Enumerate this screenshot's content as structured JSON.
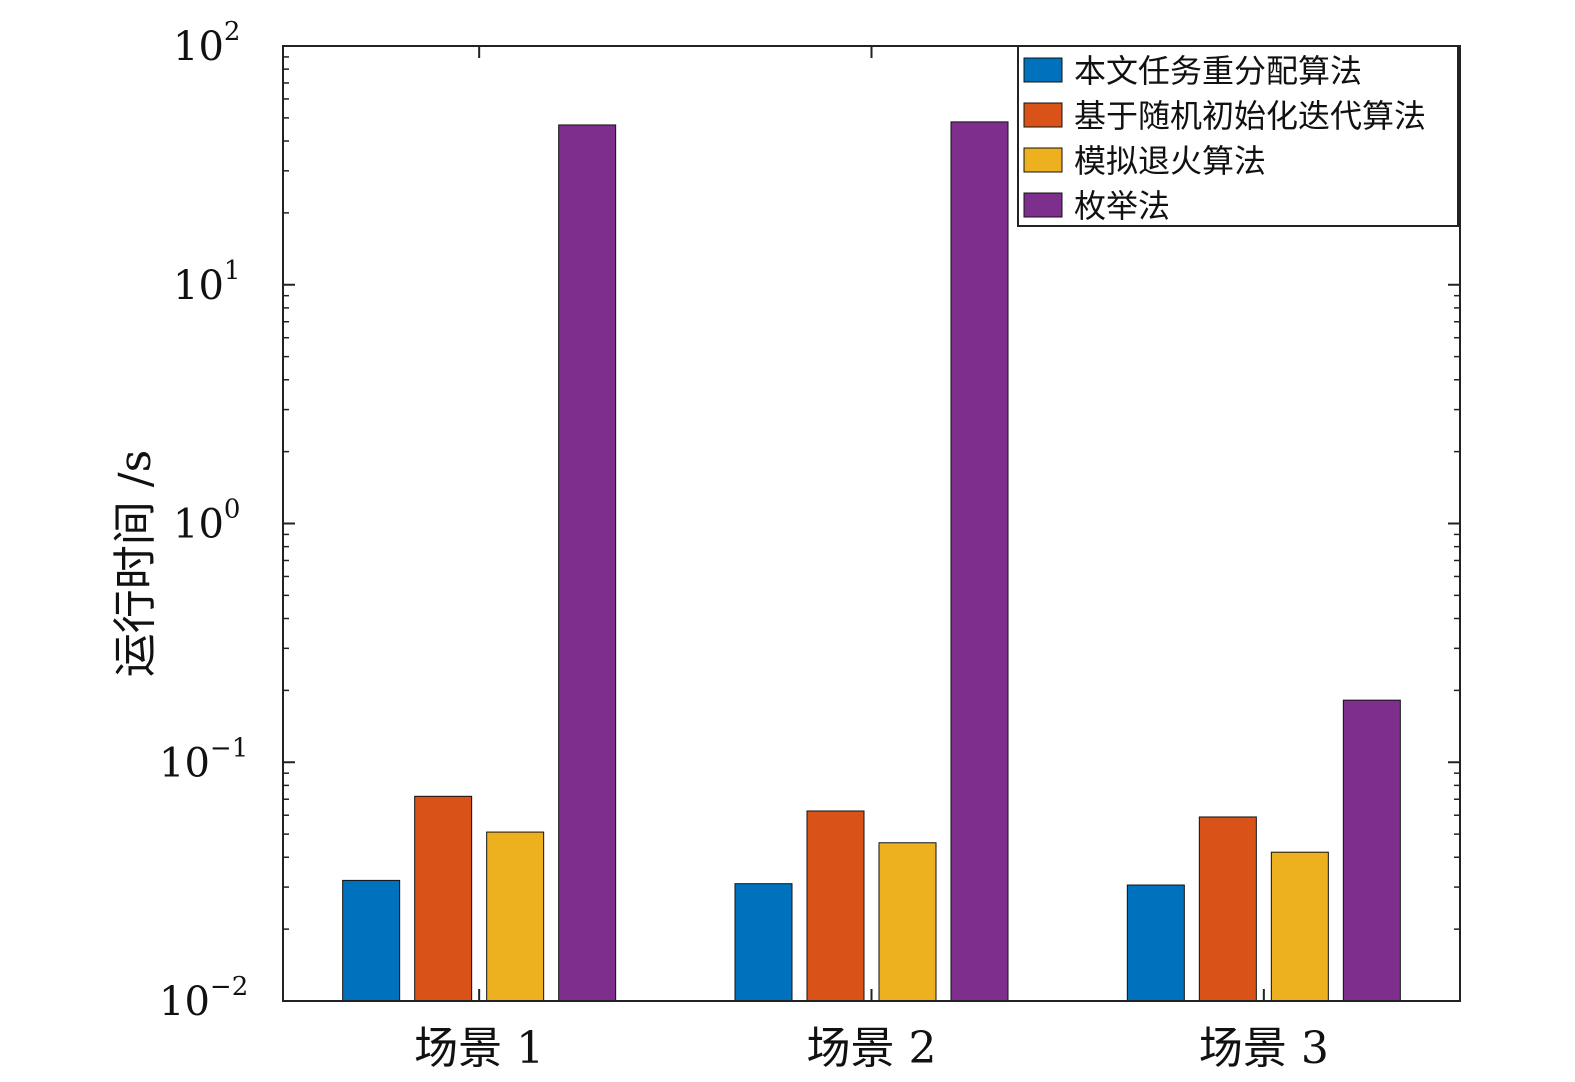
{
  "chart_data": {
    "type": "bar",
    "title": "",
    "xlabel": "",
    "ylabel": "运行时间 /s",
    "yscale": "log",
    "ylim": [
      0.01,
      100
    ],
    "yticks": [
      {
        "base": "10",
        "exp": "−2",
        "value": 0.01
      },
      {
        "base": "10",
        "exp": "−1",
        "value": 0.1
      },
      {
        "base": "10",
        "exp": "0",
        "value": 1
      },
      {
        "base": "10",
        "exp": "1",
        "value": 10
      },
      {
        "base": "10",
        "exp": "2",
        "value": 100
      }
    ],
    "categories": [
      "场景 1",
      "场景 2",
      "场景 3"
    ],
    "series": [
      {
        "name": "本文任务重分配算法",
        "color": "#0072BD",
        "values": [
          0.032,
          0.031,
          0.0306
        ]
      },
      {
        "name": "基于随机初始化迭代算法",
        "color": "#D95319",
        "values": [
          0.072,
          0.0625,
          0.059
        ]
      },
      {
        "name": "模拟退火算法",
        "color": "#EDB120",
        "values": [
          0.051,
          0.046,
          0.042
        ]
      },
      {
        "name": "枚举法",
        "color": "#7E2F8E",
        "values": [
          46.7,
          48.1,
          0.182
        ]
      }
    ],
    "legend_position": "top-right",
    "grid": false
  }
}
